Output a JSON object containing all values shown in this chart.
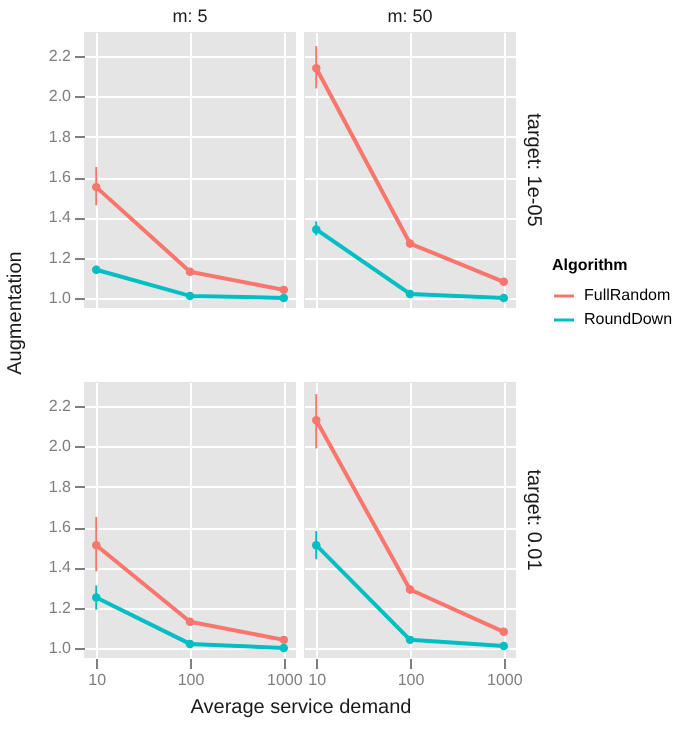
{
  "chart_data": [
    {
      "type": "line",
      "title": "m: 5",
      "ylabel": "Augmentation",
      "x": [
        10,
        100,
        1000
      ],
      "xlim": [
        7.4,
        1350
      ],
      "xticks": [
        10,
        100,
        1000
      ],
      "log": "x",
      "ylim": [
        0.95,
        2.32
      ],
      "yticks": [
        {
          "value": 1,
          "label": "1.0"
        },
        {
          "value": 1.2,
          "label": "1.2"
        },
        {
          "value": 1.4,
          "label": "1.4"
        },
        {
          "value": 1.6,
          "label": "1.6"
        },
        {
          "value": 1.8,
          "label": "1.8"
        },
        {
          "value": 2,
          "label": "2.0"
        },
        {
          "value": 2.2,
          "label": "2.2"
        }
      ],
      "grid": true,
      "marker": "circle",
      "tick_labels": "y",
      "series": [
        {
          "color": "#f8766d",
          "values": [
            1.55,
            1.13,
            1.04
          ],
          "errors": [
            [
              1.46,
              1.65
            ],
            null,
            null
          ]
        },
        {
          "color": "#00bfc4",
          "values": [
            1.14,
            1.01,
            1.0
          ],
          "errors": [
            [
              1.12,
              1.16
            ],
            null,
            null
          ]
        }
      ]
    },
    {
      "type": "line",
      "title": "m: 50",
      "y2label": "target: 1e-05",
      "legend_title": "Algorithm",
      "legend": "right",
      "x": [
        10,
        100,
        1000
      ],
      "xlim": [
        7.4,
        1350
      ],
      "xticks": [
        10,
        100,
        1000
      ],
      "log": "x",
      "ylim": [
        0.95,
        2.32
      ],
      "yticks": [
        {
          "value": 1,
          "label": null
        },
        {
          "value": 1.2,
          "label": null
        },
        {
          "value": 1.4,
          "label": null
        },
        {
          "value": 1.6,
          "label": null
        },
        {
          "value": 1.8,
          "label": null
        },
        {
          "value": 2,
          "label": null
        },
        {
          "value": 2.2,
          "label": null
        }
      ],
      "grid": true,
      "marker": "circle",
      "tick_labels": false,
      "series": [
        {
          "name": "FullRandom",
          "color": "#f8766d",
          "values": [
            2.14,
            1.27,
            1.08
          ],
          "errors": [
            [
              2.04,
              2.25
            ],
            [
              1.25,
              1.29
            ],
            null
          ]
        },
        {
          "name": "RoundDown",
          "color": "#00bfc4",
          "values": [
            1.34,
            1.02,
            1.0
          ],
          "errors": [
            [
              1.31,
              1.38
            ],
            null,
            null
          ]
        }
      ]
    },
    {
      "type": "line",
      "xlabel": "Average service demand",
      "x": [
        10,
        100,
        1000
      ],
      "xlim": [
        7.4,
        1350
      ],
      "xticks": [
        10,
        100,
        1000
      ],
      "log": "x",
      "ylim": [
        0.95,
        2.32
      ],
      "yticks": [
        {
          "value": 1,
          "label": "1.0"
        },
        {
          "value": 1.2,
          "label": "1.2"
        },
        {
          "value": 1.4,
          "label": "1.4"
        },
        {
          "value": 1.6,
          "label": "1.6"
        },
        {
          "value": 1.8,
          "label": "1.8"
        },
        {
          "value": 2,
          "label": "2.0"
        },
        {
          "value": 2.2,
          "label": "2.2"
        }
      ],
      "grid": true,
      "marker": "circle",
      "series": [
        {
          "color": "#f8766d",
          "values": [
            1.51,
            1.13,
            1.04
          ],
          "errors": [
            [
              1.38,
              1.65
            ],
            null,
            null
          ]
        },
        {
          "color": "#00bfc4",
          "values": [
            1.25,
            1.02,
            1.0
          ],
          "errors": [
            [
              1.19,
              1.31
            ],
            null,
            null
          ]
        }
      ]
    },
    {
      "type": "line",
      "y2label": "target: 0.01",
      "x": [
        10,
        100,
        1000
      ],
      "xlim": [
        7.4,
        1350
      ],
      "xticks": [
        10,
        100,
        1000
      ],
      "log": "x",
      "ylim": [
        0.95,
        2.32
      ],
      "yticks": [
        {
          "value": 1,
          "label": null
        },
        {
          "value": 1.2,
          "label": null
        },
        {
          "value": 1.4,
          "label": null
        },
        {
          "value": 1.6,
          "label": null
        },
        {
          "value": 1.8,
          "label": null
        },
        {
          "value": 2,
          "label": null
        },
        {
          "value": 2.2,
          "label": null
        }
      ],
      "grid": true,
      "marker": "circle",
      "tick_labels": "x",
      "series": [
        {
          "color": "#f8766d",
          "values": [
            2.13,
            1.29,
            1.08
          ],
          "errors": [
            [
              1.99,
              2.26
            ],
            [
              1.27,
              1.31
            ],
            null
          ]
        },
        {
          "color": "#00bfc4",
          "values": [
            1.51,
            1.04,
            1.01
          ],
          "errors": [
            [
              1.44,
              1.58
            ],
            null,
            null
          ]
        }
      ]
    }
  ]
}
